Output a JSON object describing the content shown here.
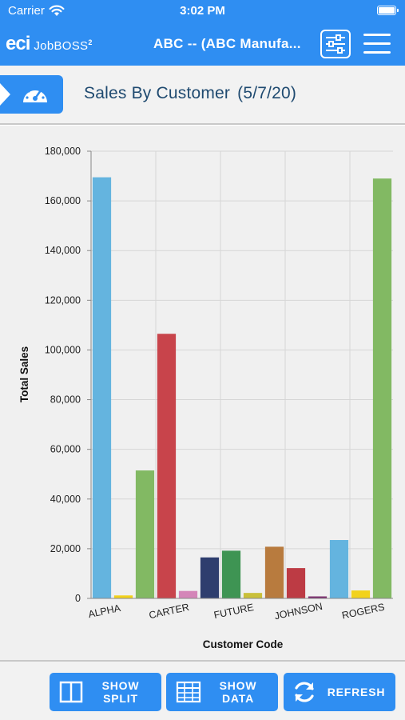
{
  "status": {
    "carrier": "Carrier",
    "time": "3:02 PM"
  },
  "nav": {
    "logo_eci": "eci",
    "logo_product": "JobBOSS",
    "logo_superscript": "2",
    "title": "ABC -- (ABC Manufa..."
  },
  "header": {
    "title": "Sales By Customer",
    "date": "(5/7/20)"
  },
  "chart_data": {
    "type": "bar",
    "xlabel": "Customer Code",
    "ylabel": "Total Sales",
    "ylim": [
      0,
      180000
    ],
    "yticks": [
      0,
      20000,
      40000,
      60000,
      80000,
      100000,
      120000,
      140000,
      160000,
      180000
    ],
    "ytick_labels": [
      "0",
      "20,000",
      "40,000",
      "60,000",
      "80,000",
      "100,000",
      "120,000",
      "140,000",
      "160,000",
      "180,000"
    ],
    "x_tick_labels": [
      "ALPHA",
      "CARTER",
      "FUTURE",
      "JOHNSON",
      "ROGERS"
    ],
    "grid": true,
    "bars": [
      {
        "value": 169500,
        "color": "#64b4df"
      },
      {
        "value": 1200,
        "color": "#f2d21c"
      },
      {
        "value": 51500,
        "color": "#82b963"
      },
      {
        "value": 106500,
        "color": "#c8444b"
      },
      {
        "value": 3000,
        "color": "#d485b8"
      },
      {
        "value": 16500,
        "color": "#2e3e6e"
      },
      {
        "value": 19200,
        "color": "#3e9453"
      },
      {
        "value": 2200,
        "color": "#c9c03a"
      },
      {
        "value": 20800,
        "color": "#b87b3e"
      },
      {
        "value": 12200,
        "color": "#bd3b44"
      },
      {
        "value": 800,
        "color": "#7b2d6e"
      },
      {
        "value": 23500,
        "color": "#64b4df"
      },
      {
        "value": 3200,
        "color": "#f2d21c"
      },
      {
        "value": 169000,
        "color": "#82b963"
      }
    ]
  },
  "toolbar": {
    "split_line1": "SHOW",
    "split_line2": "SPLIT",
    "data_line1": "SHOW",
    "data_line2": "DATA",
    "refresh": "REFRESH"
  },
  "colors": {
    "brand": "#2f8ef2",
    "title_text": "#1f4a70"
  }
}
